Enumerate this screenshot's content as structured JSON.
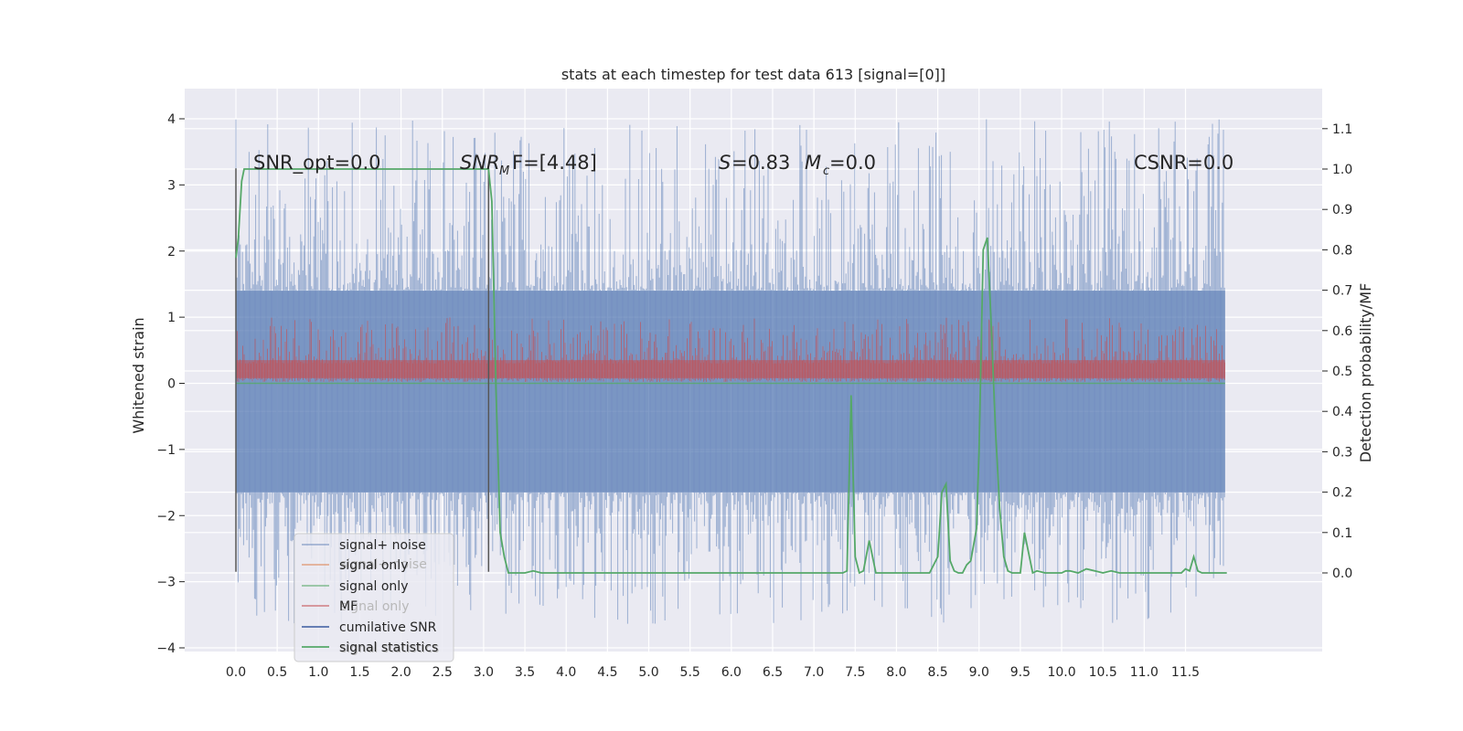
{
  "chart_data": {
    "type": "line",
    "title": "stats at each timestep for test data 613 [signal=[0]]",
    "xlabel": "",
    "ylabel_left": "Whitened strain",
    "ylabel_right": "Detection probability/MF",
    "xlim": [
      -0.6,
      12.6
    ],
    "ylim_left": [
      -4.1,
      4.4
    ],
    "ylim_right": [
      -0.2,
      1.2
    ],
    "xticks": [
      "0.0",
      "0.5",
      "1.0",
      "1.5",
      "2.0",
      "2.5",
      "3.0",
      "3.5",
      "4.0",
      "4.5",
      "5.0",
      "5.5",
      "6.0",
      "6.5",
      "7.0",
      "7.5",
      "8.0",
      "8.5",
      "9.0",
      "9.5",
      "10.0",
      "10.5",
      "11.0",
      "11.5"
    ],
    "yticks_left": [
      "4",
      "3",
      "2",
      "1",
      "0",
      "−1",
      "−2",
      "−3",
      "−4"
    ],
    "yticks_right": [
      "1.1",
      "1.0",
      "0.9",
      "0.8",
      "0.7",
      "0.6",
      "0.5",
      "0.4",
      "0.3",
      "0.2",
      "0.1",
      "0.0"
    ],
    "grid": true,
    "background": "#eaeaf2",
    "colors": {
      "noise": "#4c72b0",
      "signal": "#dd8452",
      "signal2": "#55a868",
      "mf": "#c44e52",
      "csnr": "#3a5ba0",
      "stats": "#55a868",
      "marker": "#555555"
    },
    "annotations": {
      "snr_opt": "SNR_opt=0.0",
      "snr_mf_a": "SNR",
      "snr_mf_sub": "M",
      "snr_mf_b": "F=[4.48]",
      "s_a": "S",
      "s_b": "=0.83",
      "mc_a": "M",
      "mc_sub": "c",
      "mc_b": "=0.0",
      "csnr": "CSNR=0.0"
    },
    "legend": {
      "placement": "lower-left",
      "entries": [
        "signal+ noise",
        "signal only",
        "signal only",
        "MF",
        "cumilative SNR",
        "signal statistics"
      ],
      "ghost_entries": [
        "signal+ noise",
        "signal only",
        "signal statistics"
      ]
    },
    "series": [
      {
        "name": "signal+ noise",
        "axis": "left",
        "envelope": {
          "upper": 1.4,
          "lower": -1.65,
          "peak_high": 4.0,
          "peak_low": -3.65
        }
      },
      {
        "name": "MF",
        "axis": "left",
        "envelope": {
          "upper": 0.55,
          "lower": 0.0,
          "peak_high": 1.0
        }
      },
      {
        "name": "signal only",
        "axis": "left",
        "constant": 0.0
      },
      {
        "name": "cumilative SNR",
        "axis": "left",
        "vertical_at": 0.0,
        "range": [
          -2.85,
          3.25
        ]
      },
      {
        "name": "signal statistics",
        "axis": "right",
        "x": [
          0.0,
          0.03,
          0.07,
          0.1,
          0.2,
          0.5,
          1.0,
          1.5,
          2.0,
          2.5,
          3.0,
          3.06,
          3.1,
          3.15,
          3.2,
          3.25,
          3.3,
          3.5,
          3.6,
          3.7,
          4.0,
          4.5,
          5.0,
          5.5,
          6.0,
          6.5,
          7.0,
          7.35,
          7.4,
          7.45,
          7.5,
          7.55,
          7.6,
          7.67,
          7.75,
          7.8,
          8.0,
          8.4,
          8.5,
          8.55,
          8.6,
          8.65,
          8.7,
          8.75,
          8.8,
          8.85,
          8.9,
          8.97,
          9.0,
          9.05,
          9.1,
          9.15,
          9.2,
          9.25,
          9.3,
          9.35,
          9.4,
          9.5,
          9.55,
          9.6,
          9.65,
          9.7,
          9.8,
          10.0,
          10.05,
          10.1,
          10.2,
          10.3,
          10.4,
          10.5,
          10.6,
          10.7,
          11.0,
          11.4,
          11.45,
          11.5,
          11.55,
          11.6,
          11.65,
          11.7,
          11.85,
          12.0
        ],
        "values": [
          0.78,
          0.83,
          0.97,
          1.0,
          1.0,
          1.0,
          1.0,
          1.0,
          1.0,
          1.0,
          1.0,
          1.0,
          0.92,
          0.45,
          0.1,
          0.04,
          0.0,
          0.0,
          0.005,
          0.0,
          0.0,
          0.0,
          0.0,
          0.0,
          0.0,
          0.0,
          0.0,
          0.0,
          0.005,
          0.44,
          0.04,
          0.0,
          0.005,
          0.08,
          0.0,
          0.0,
          0.0,
          0.0,
          0.04,
          0.2,
          0.22,
          0.03,
          0.005,
          0.0,
          0.0,
          0.02,
          0.03,
          0.11,
          0.3,
          0.8,
          0.83,
          0.6,
          0.35,
          0.16,
          0.04,
          0.005,
          0.0,
          0.0,
          0.1,
          0.05,
          0.0,
          0.005,
          0.0,
          0.0,
          0.005,
          0.005,
          0.0,
          0.01,
          0.005,
          0.0,
          0.005,
          0.0,
          0.0,
          0.0,
          0.0,
          0.01,
          0.005,
          0.04,
          0.005,
          0.0,
          0.0,
          0.0
        ]
      }
    ]
  }
}
